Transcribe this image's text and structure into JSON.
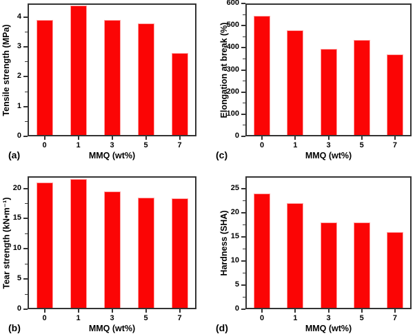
{
  "figure": {
    "background_color": "#ffffff",
    "bar_color": "#fb0505",
    "bar_edge_color": "#ffa2a2",
    "axis_color": "#333333",
    "text_color": "#000000"
  },
  "chart_data": [
    {
      "id": "a",
      "type": "bar",
      "panel_label": "(a)",
      "xlabel": "MMQ (wt%)",
      "ylabel": "Tensile strength (MPa)",
      "categories": [
        "0",
        "1",
        "3",
        "5",
        "7"
      ],
      "values": [
        3.9,
        4.4,
        3.9,
        3.8,
        2.8
      ],
      "ylim": [
        0,
        4.46
      ],
      "yticks": [
        0,
        1,
        2,
        3,
        4
      ],
      "ytick_step": 1,
      "minor_ticks": true,
      "grid": false,
      "legend": "none"
    },
    {
      "id": "c",
      "type": "bar",
      "panel_label": "(c)",
      "xlabel": "MMQ (wt%)",
      "ylabel": "Elongation at break (%)",
      "categories": [
        "0",
        "1",
        "3",
        "5",
        "7"
      ],
      "values": [
        545,
        478,
        395,
        435,
        370
      ],
      "ylim": [
        0,
        600
      ],
      "yticks": [
        0,
        100,
        200,
        300,
        400,
        500,
        600
      ],
      "ytick_step": 100,
      "minor_ticks": true,
      "grid": false,
      "legend": "none"
    },
    {
      "id": "b",
      "type": "bar",
      "panel_label": "(b)",
      "xlabel": "MMQ (wt%)",
      "ylabel": "Tear strength (kN•m⁻¹)",
      "categories": [
        "0",
        "1",
        "3",
        "5",
        "7"
      ],
      "values": [
        21.0,
        21.5,
        19.5,
        18.5,
        18.4
      ],
      "ylim": [
        0,
        22
      ],
      "yticks": [
        0,
        5,
        10,
        15,
        20
      ],
      "ytick_step": 5,
      "minor_ticks": true,
      "grid": false,
      "legend": "none"
    },
    {
      "id": "d",
      "type": "bar",
      "panel_label": "(d)",
      "xlabel": "MMQ (wt%)",
      "ylabel": "Hardness (SHA)",
      "categories": [
        "0",
        "1",
        "3",
        "5",
        "7"
      ],
      "values": [
        24,
        22,
        18,
        18,
        16
      ],
      "ylim": [
        0,
        27.5
      ],
      "yticks": [
        0,
        5,
        10,
        15,
        20,
        25
      ],
      "ytick_step": 5,
      "minor_ticks": true,
      "grid": false,
      "legend": "none"
    }
  ]
}
